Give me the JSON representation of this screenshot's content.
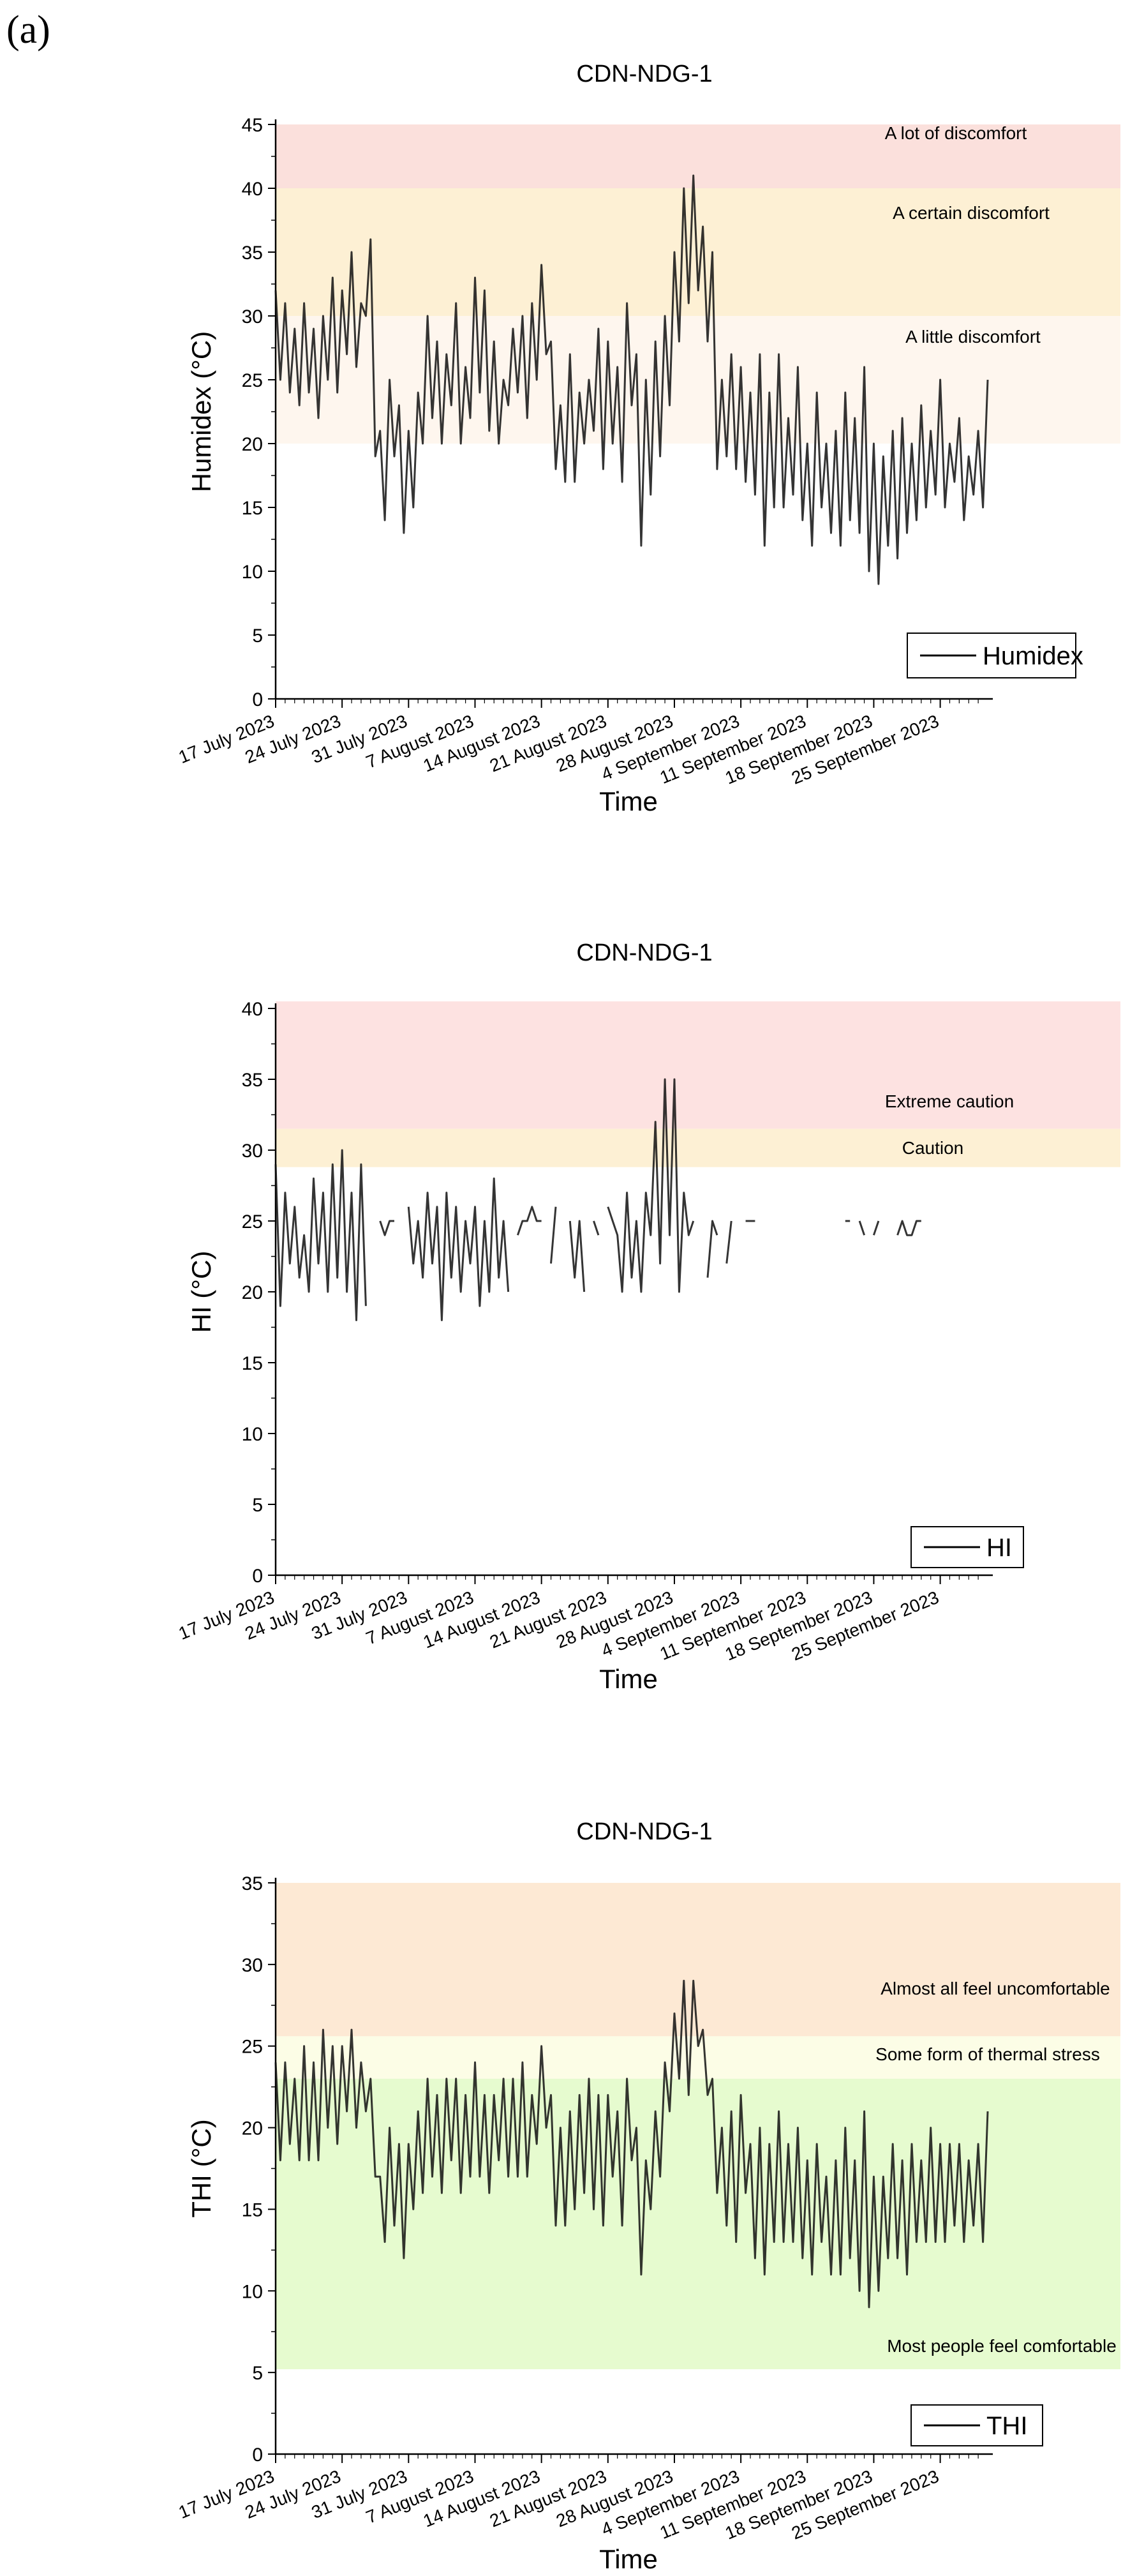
{
  "panel_label": "(a)",
  "chart_data": [
    {
      "type": "line",
      "title": "CDN-NDG-1",
      "xlabel": "Time",
      "ylabel": "Humidex (°C)",
      "ylim": [
        0,
        45
      ],
      "yticks": [
        0,
        5,
        10,
        15,
        20,
        25,
        30,
        35,
        40,
        45
      ],
      "x_ticks": [
        "17 July 2023",
        "24 July 2023",
        "31 July 2023",
        "7 August 2023",
        "14 August 2023",
        "21 August 2023",
        "28 August 2023",
        "4 September 2023",
        "11 September 2023",
        "18 September 2023",
        "25 September 2023"
      ],
      "x_range_days": [
        0,
        75
      ],
      "legend": "Humidex",
      "bands": [
        {
          "from": 40,
          "to": 45,
          "label": "A lot of discomfort",
          "color": "#fbe0dc"
        },
        {
          "from": 30,
          "to": 40,
          "label": "A certain discomfort",
          "color": "#fdf0d4"
        },
        {
          "from": 20,
          "to": 30,
          "label": "A little discomfort",
          "color": "#fef6ee"
        }
      ],
      "series": [
        {
          "name": "Humidex",
          "x_days": [
            0,
            0.5,
            1,
            1.5,
            2,
            2.5,
            3,
            3.5,
            4,
            4.5,
            5,
            5.5,
            6,
            6.5,
            7,
            7.5,
            8,
            8.5,
            9,
            9.5,
            10,
            10.5,
            11,
            11.5,
            12,
            12.5,
            13,
            13.5,
            14,
            14.5,
            15,
            15.5,
            16,
            16.5,
            17,
            17.5,
            18,
            18.5,
            19,
            19.5,
            20,
            20.5,
            21,
            21.5,
            22,
            22.5,
            23,
            23.5,
            24,
            24.5,
            25,
            25.5,
            26,
            26.5,
            27,
            27.5,
            28,
            28.5,
            29,
            29.5,
            30,
            30.5,
            31,
            31.5,
            32,
            32.5,
            33,
            33.5,
            34,
            34.5,
            35,
            35.5,
            36,
            36.5,
            37,
            37.5,
            38,
            38.5,
            39,
            39.5,
            40,
            40.5,
            41,
            41.5,
            42,
            42.5,
            43,
            43.5,
            44,
            44.5,
            45,
            45.5,
            46,
            46.5,
            47,
            47.5,
            48,
            48.5,
            49,
            49.5,
            50,
            50.5,
            51,
            51.5,
            52,
            52.5,
            53,
            53.5,
            54,
            54.5,
            55,
            55.5,
            56,
            56.5,
            57,
            57.5,
            58,
            58.5,
            59,
            59.5,
            60,
            60.5,
            61,
            61.5,
            62,
            62.5,
            63,
            63.5,
            64,
            64.5,
            65,
            65.5,
            66,
            66.5,
            67,
            67.5,
            68,
            68.5,
            69,
            69.5,
            70,
            70.5,
            71,
            71.5,
            72,
            72.5,
            73,
            73.5,
            74,
            74.5,
            75
          ],
          "values": [
            32,
            25,
            31,
            24,
            29,
            23,
            31,
            24,
            29,
            22,
            30,
            25,
            33,
            24,
            32,
            27,
            35,
            26,
            31,
            30,
            36,
            19,
            21,
            14,
            25,
            19,
            23,
            13,
            21,
            15,
            24,
            20,
            30,
            22,
            28,
            20,
            27,
            23,
            31,
            20,
            26,
            22,
            33,
            24,
            32,
            21,
            28,
            20,
            25,
            23,
            29,
            24,
            30,
            22,
            31,
            25,
            34,
            27,
            28,
            18,
            23,
            17,
            27,
            17,
            24,
            20,
            25,
            21,
            29,
            18,
            28,
            20,
            26,
            17,
            31,
            23,
            27,
            12,
            25,
            16,
            28,
            19,
            30,
            23,
            35,
            28,
            40,
            31,
            41,
            32,
            37,
            28,
            35,
            18,
            25,
            19,
            27,
            18,
            26,
            17,
            24,
            16,
            27,
            12,
            24,
            15,
            27,
            15,
            22,
            16,
            26,
            14,
            20,
            12,
            24,
            15,
            20,
            13,
            21,
            12,
            24,
            14,
            22,
            13,
            26,
            10,
            20,
            9,
            19,
            12,
            21,
            11,
            22,
            13,
            20,
            14,
            23,
            15,
            21,
            16,
            25,
            15,
            20,
            17,
            22,
            14,
            19,
            16,
            21,
            15,
            25
          ]
        }
      ]
    },
    {
      "type": "line",
      "title": "CDN-NDG-1",
      "xlabel": "Time",
      "ylabel": "HI (°C)",
      "ylim": [
        0,
        40
      ],
      "yticks": [
        0,
        5,
        10,
        15,
        20,
        25,
        30,
        35,
        40
      ],
      "x_ticks": [
        "17 July 2023",
        "24 July 2023",
        "31 July 2023",
        "7 August 2023",
        "14 August 2023",
        "21 August 2023",
        "28 August 2023",
        "4 September 2023",
        "11 September 2023",
        "18 September 2023",
        "25 September 2023"
      ],
      "x_range_days": [
        0,
        75
      ],
      "legend": "HI",
      "bands": [
        {
          "from": 31.5,
          "to": 40.5,
          "label": "Extreme caution",
          "color": "#fde2e1"
        },
        {
          "from": 28.8,
          "to": 31.5,
          "label": "Caution",
          "color": "#fdf0d4"
        }
      ],
      "series": [
        {
          "name": "HI",
          "x_days": [
            0,
            0.5,
            1,
            1.5,
            2,
            2.5,
            3,
            3.5,
            4,
            4.5,
            5,
            5.5,
            6,
            6.5,
            7,
            7.5,
            8,
            8.5,
            9,
            9.5,
            10,
            10.5,
            11,
            11.5,
            12,
            12.5,
            13,
            13.5,
            14,
            14.5,
            15,
            15.5,
            16,
            16.5,
            17,
            17.5,
            18,
            18.5,
            19,
            19.5,
            20,
            20.5,
            21,
            21.5,
            22,
            22.5,
            23,
            23.5,
            24,
            24.5,
            25,
            25.5,
            26,
            26.5,
            27,
            27.5,
            28,
            28.5,
            29,
            29.5,
            30,
            30.5,
            31,
            31.5,
            32,
            32.5,
            33,
            33.5,
            34,
            34.5,
            35,
            35.5,
            36,
            36.5,
            37,
            37.5,
            38,
            38.5,
            39,
            39.5,
            40,
            40.5,
            41,
            41.5,
            42,
            42.5,
            43,
            43.5,
            44,
            44.5,
            45,
            45.5,
            46,
            46.5,
            47,
            47.5,
            48,
            48.5,
            49,
            49.5,
            50,
            50.5,
            51,
            51.5,
            52,
            52.5,
            53,
            53.5,
            54,
            54.5,
            55,
            55.5,
            56,
            56.5,
            57,
            57.5,
            58,
            58.5,
            59,
            59.5,
            60,
            60.5,
            61,
            61.5,
            62,
            62.5,
            63,
            63.5,
            64,
            64.5,
            65,
            65.5,
            66,
            66.5,
            67,
            67.5,
            68,
            68.5,
            69,
            69.5,
            70,
            70.5,
            71,
            71.5,
            72,
            72.5,
            73,
            73.5,
            74,
            74.5,
            75
          ],
          "values": [
            29,
            19,
            27,
            22,
            26,
            21,
            24,
            20,
            28,
            22,
            27,
            20,
            29,
            21,
            30,
            20,
            27,
            18,
            29,
            19,
            null,
            null,
            25,
            24,
            25,
            25,
            null,
            null,
            26,
            22,
            25,
            21,
            27,
            22,
            26,
            18,
            27,
            21,
            26,
            20,
            25,
            22,
            26,
            19,
            25,
            20,
            28,
            21,
            25,
            20,
            null,
            24,
            25,
            25,
            26,
            25,
            25,
            null,
            22,
            26,
            null,
            null,
            25,
            21,
            25,
            20,
            null,
            25,
            24,
            null,
            26,
            25,
            24,
            20,
            27,
            21,
            25,
            20,
            27,
            24,
            32,
            22,
            35,
            24,
            35,
            20,
            27,
            24,
            25,
            null,
            null,
            21,
            25,
            24,
            null,
            22,
            25,
            null,
            null,
            25,
            25,
            25,
            null,
            24,
            null,
            null,
            null,
            null,
            null,
            null,
            null,
            null,
            null,
            null,
            null,
            null,
            null,
            null,
            null,
            null,
            25,
            25,
            null,
            25,
            24,
            null,
            24,
            25,
            null,
            25,
            null,
            24,
            25,
            24,
            24,
            25,
            25,
            null,
            null,
            null,
            null,
            null,
            null,
            null,
            null,
            null,
            null,
            null,
            null,
            null,
            null
          ]
        }
      ]
    },
    {
      "type": "line",
      "title": "CDN-NDG-1",
      "xlabel": "Time",
      "ylabel": "THI (°C)",
      "ylim": [
        0,
        35
      ],
      "yticks": [
        0,
        5,
        10,
        15,
        20,
        25,
        30,
        35
      ],
      "x_ticks": [
        "17 July 2023",
        "24 July 2023",
        "31 July 2023",
        "7 August 2023",
        "14 August 2023",
        "21 August 2023",
        "28 August 2023",
        "4 September 2023",
        "11 September 2023",
        "18 September 2023",
        "25 September 2023"
      ],
      "x_range_days": [
        0,
        75
      ],
      "legend": "THI",
      "bands": [
        {
          "from": 25.6,
          "to": 35,
          "label": "Almost all feel uncomfortable",
          "color": "#fde9d4"
        },
        {
          "from": 23,
          "to": 25.6,
          "label": "Some form of thermal stress",
          "color": "#fcfde6"
        },
        {
          "from": 5.2,
          "to": 23,
          "label": "Most people feel comfortable",
          "color": "#e6fbcf"
        }
      ],
      "series": [
        {
          "name": "THI",
          "x_days": [
            0,
            0.5,
            1,
            1.5,
            2,
            2.5,
            3,
            3.5,
            4,
            4.5,
            5,
            5.5,
            6,
            6.5,
            7,
            7.5,
            8,
            8.5,
            9,
            9.5,
            10,
            10.5,
            11,
            11.5,
            12,
            12.5,
            13,
            13.5,
            14,
            14.5,
            15,
            15.5,
            16,
            16.5,
            17,
            17.5,
            18,
            18.5,
            19,
            19.5,
            20,
            20.5,
            21,
            21.5,
            22,
            22.5,
            23,
            23.5,
            24,
            24.5,
            25,
            25.5,
            26,
            26.5,
            27,
            27.5,
            28,
            28.5,
            29,
            29.5,
            30,
            30.5,
            31,
            31.5,
            32,
            32.5,
            33,
            33.5,
            34,
            34.5,
            35,
            35.5,
            36,
            36.5,
            37,
            37.5,
            38,
            38.5,
            39,
            39.5,
            40,
            40.5,
            41,
            41.5,
            42,
            42.5,
            43,
            43.5,
            44,
            44.5,
            45,
            45.5,
            46,
            46.5,
            47,
            47.5,
            48,
            48.5,
            49,
            49.5,
            50,
            50.5,
            51,
            51.5,
            52,
            52.5,
            53,
            53.5,
            54,
            54.5,
            55,
            55.5,
            56,
            56.5,
            57,
            57.5,
            58,
            58.5,
            59,
            59.5,
            60,
            60.5,
            61,
            61.5,
            62,
            62.5,
            63,
            63.5,
            64,
            64.5,
            65,
            65.5,
            66,
            66.5,
            67,
            67.5,
            68,
            68.5,
            69,
            69.5,
            70,
            70.5,
            71,
            71.5,
            72,
            72.5,
            73,
            73.5,
            74,
            74.5,
            75
          ],
          "values": [
            24,
            18,
            24,
            19,
            23,
            18,
            25,
            18,
            24,
            18,
            26,
            20,
            25,
            19,
            25,
            21,
            26,
            20,
            24,
            21,
            23,
            17,
            17,
            13,
            20,
            14,
            19,
            12,
            19,
            15,
            21,
            16,
            23,
            17,
            22,
            16,
            23,
            18,
            23,
            16,
            22,
            17,
            24,
            17,
            22,
            16,
            22,
            18,
            23,
            17,
            23,
            17,
            24,
            17,
            22,
            19,
            25,
            20,
            22,
            14,
            20,
            14,
            21,
            15,
            22,
            16,
            23,
            15,
            22,
            14,
            22,
            17,
            21,
            14,
            23,
            18,
            20,
            11,
            18,
            15,
            21,
            17,
            24,
            21,
            27,
            23,
            29,
            22,
            29,
            25,
            26,
            22,
            23,
            16,
            20,
            14,
            21,
            13,
            22,
            16,
            19,
            12,
            20,
            11,
            19,
            13,
            21,
            13,
            19,
            13,
            20,
            12,
            18,
            11,
            19,
            13,
            17,
            11,
            18,
            11,
            20,
            12,
            18,
            10,
            21,
            9,
            17,
            10,
            17,
            12,
            19,
            12,
            18,
            11,
            19,
            13,
            18,
            13,
            20,
            13,
            19,
            13,
            19,
            14,
            19,
            13,
            18,
            14,
            19,
            13,
            21
          ]
        }
      ]
    }
  ]
}
